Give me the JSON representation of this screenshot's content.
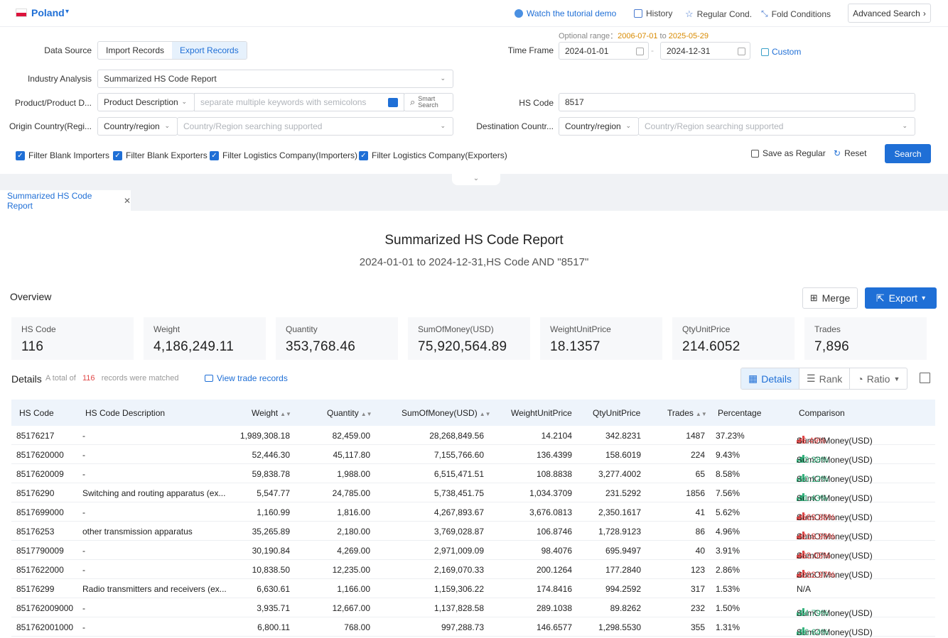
{
  "topbar": {
    "country": "Poland",
    "tutorial": "Watch the tutorial demo",
    "history": "History",
    "regular": "Regular Cond.",
    "fold": "Fold Conditions",
    "advanced": "Advanced Search"
  },
  "form": {
    "data_source_label": "Data Source",
    "import": "Import Records",
    "export": "Export Records",
    "optional_label": "Optional range：",
    "optional_from": "2006-07-01",
    "optional_to_word": "to",
    "optional_to": "2025-05-29",
    "time_frame_label": "Time Frame",
    "date_from": "2024-01-01",
    "date_to": "2024-12-31",
    "custom": "Custom",
    "industry_label": "Industry Analysis",
    "industry_value": "Summarized HS Code Report",
    "product_label": "Product/Product D...",
    "product_type": "Product Description",
    "keywords_placeholder": "separate multiple keywords with semicolons",
    "smart_search": "Smart Search",
    "hs_label": "HS Code",
    "hs_value": "8517",
    "origin_label": "Origin Country(Regi...",
    "origin_type": "Country/region",
    "origin_placeholder": "Country/Region searching supported",
    "dest_label": "Destination Countr...",
    "dest_type": "Country/region",
    "dest_placeholder": "Country/Region searching supported",
    "filters": [
      "Filter Blank Importers",
      "Filter Blank Exporters",
      "Filter Logistics Company(Importers)",
      "Filter Logistics Company(Exporters)"
    ],
    "save_regular": "Save as Regular",
    "reset": "Reset",
    "search": "Search"
  },
  "report_tab": "Summarized HS Code Report",
  "report": {
    "title": "Summarized HS Code Report",
    "subtitle": "2024-01-01 to 2024-12-31,HS Code AND \"8517\""
  },
  "overview": {
    "label": "Overview",
    "merge": "Merge",
    "export": "Export",
    "stats": [
      {
        "k": "HS Code",
        "v": "116"
      },
      {
        "k": "Weight",
        "v": "4,186,249.11"
      },
      {
        "k": "Quantity",
        "v": "353,768.46"
      },
      {
        "k": "SumOfMoney(USD)",
        "v": "75,920,564.89"
      },
      {
        "k": "WeightUnitPrice",
        "v": "18.1357"
      },
      {
        "k": "QtyUnitPrice",
        "v": "214.6052"
      },
      {
        "k": "Trades",
        "v": "7,896"
      }
    ]
  },
  "details": {
    "label": "Details",
    "total_prefix": "A total of",
    "total": "116",
    "total_suffix": "records were matched",
    "view_trade": "View trade records",
    "view_details": "Details",
    "view_rank": "Rank",
    "view_ratio": "Ratio"
  },
  "table": {
    "headers": [
      "HS Code",
      "HS Code Description",
      "Weight",
      "Quantity",
      "SumOfMoney(USD)",
      "WeightUnitPrice",
      "QtyUnitPrice",
      "Trades",
      "Percentage",
      "Comparison"
    ],
    "rows": [
      {
        "code": "85176217",
        "desc": "-",
        "weight": "1,989,308.18",
        "qty": "82,459.00",
        "money": "28,268,849.56",
        "wup": "14.2104",
        "qup": "342.8231",
        "trades": "1487",
        "pct": "37.23%",
        "cmp": "SumOfMoney(USD)",
        "chg": "+6.49%",
        "dir": "up"
      },
      {
        "code": "8517620000",
        "desc": "-",
        "weight": "52,446.30",
        "qty": "45,117.80",
        "money": "7,155,766.60",
        "wup": "136.4399",
        "qup": "158.6019",
        "trades": "224",
        "pct": "9.43%",
        "cmp": "SumOfMoney(USD)",
        "chg": "-13.38%",
        "dir": "dn"
      },
      {
        "code": "8517620009",
        "desc": "-",
        "weight": "59,838.78",
        "qty": "1,988.00",
        "money": "6,515,471.51",
        "wup": "108.8838",
        "qup": "3,277.4002",
        "trades": "65",
        "pct": "8.58%",
        "cmp": "SumOfMoney(USD)",
        "chg": "-80.12%",
        "dir": "dn"
      },
      {
        "code": "85176290",
        "desc": "Switching and routing apparatus (ex...",
        "weight": "5,547.77",
        "qty": "24,785.00",
        "money": "5,738,451.75",
        "wup": "1,034.3709",
        "qup": "231.5292",
        "trades": "1856",
        "pct": "7.56%",
        "cmp": "SumOfMoney(USD)",
        "chg": "-11.43%",
        "dir": "dn"
      },
      {
        "code": "8517699000",
        "desc": "-",
        "weight": "1,160.99",
        "qty": "1,816.00",
        "money": "4,267,893.67",
        "wup": "3,676.0813",
        "qup": "2,350.1617",
        "trades": "41",
        "pct": "5.62%",
        "cmp": "SumOfMoney(USD)",
        "chg": "+569.88%",
        "dir": "up"
      },
      {
        "code": "85176253",
        "desc": "other transmission apparatus",
        "weight": "35,265.89",
        "qty": "2,180.00",
        "money": "3,769,028.87",
        "wup": "106.8746",
        "qup": "1,728.9123",
        "trades": "86",
        "pct": "4.96%",
        "cmp": "SumOfMoney(USD)",
        "chg": "+218.99%",
        "dir": "up"
      },
      {
        "code": "8517790009",
        "desc": "-",
        "weight": "30,190.84",
        "qty": "4,269.00",
        "money": "2,971,009.09",
        "wup": "98.4076",
        "qup": "695.9497",
        "trades": "40",
        "pct": "3.91%",
        "cmp": "SumOfMoney(USD)",
        "chg": "+63.05%",
        "dir": "up"
      },
      {
        "code": "8517622000",
        "desc": "-",
        "weight": "10,838.50",
        "qty": "12,235.00",
        "money": "2,169,070.33",
        "wup": "200.1264",
        "qup": "177.2840",
        "trades": "123",
        "pct": "2.86%",
        "cmp": "SumOfMoney(USD)",
        "chg": "+282.97%",
        "dir": "up"
      },
      {
        "code": "85176299",
        "desc": "Radio transmitters and receivers (ex...",
        "weight": "6,630.61",
        "qty": "1,166.00",
        "money": "1,159,306.22",
        "wup": "174.8416",
        "qup": "994.2592",
        "trades": "317",
        "pct": "1.53%",
        "cmp": "N/A",
        "chg": "",
        "dir": "none"
      },
      {
        "code": "851762009000",
        "desc": "-",
        "weight": "3,935.71",
        "qty": "12,667.00",
        "money": "1,137,828.58",
        "wup": "289.1038",
        "qup": "89.8262",
        "trades": "232",
        "pct": "1.50%",
        "cmp": "SumOfMoney(USD)",
        "chg": "-64.79%",
        "dir": "dn"
      },
      {
        "code": "851762001000",
        "desc": "-",
        "weight": "6,800.11",
        "qty": "768.00",
        "money": "997,288.73",
        "wup": "146.6577",
        "qup": "1,298.5530",
        "trades": "355",
        "pct": "1.31%",
        "cmp": "SumOfMoney(USD)",
        "chg": "-86.64%",
        "dir": "dn"
      }
    ]
  }
}
